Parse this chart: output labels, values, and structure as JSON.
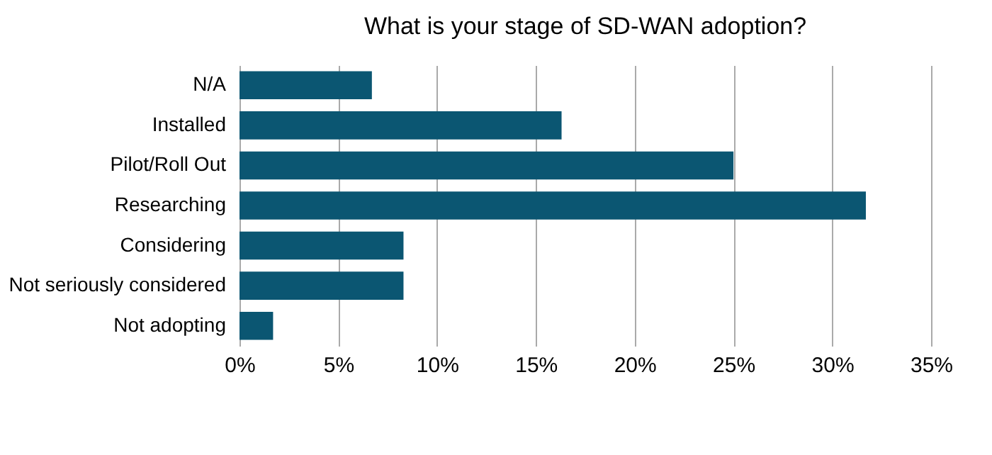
{
  "chart_data": {
    "type": "bar",
    "orientation": "horizontal",
    "title": "What is your stage of SD-WAN adoption?",
    "categories": [
      "N/A",
      "Installed",
      "Pilot/Roll Out",
      "Researching",
      "Considering",
      "Not seriously considered",
      "Not adopting"
    ],
    "values": [
      6.7,
      16.3,
      25,
      31.7,
      8.3,
      8.3,
      1.7
    ],
    "color": "#0b5672",
    "xlim": [
      0,
      35
    ],
    "xticks": [
      {
        "value": 0,
        "label": "0%"
      },
      {
        "value": 5,
        "label": "5%"
      },
      {
        "value": 10,
        "label": "10%"
      },
      {
        "value": 15,
        "label": "15%"
      },
      {
        "value": 20,
        "label": "20%"
      },
      {
        "value": 25,
        "label": "25%"
      },
      {
        "value": 30,
        "label": "30%"
      },
      {
        "value": 35,
        "label": "35%"
      }
    ],
    "grid": "x"
  }
}
